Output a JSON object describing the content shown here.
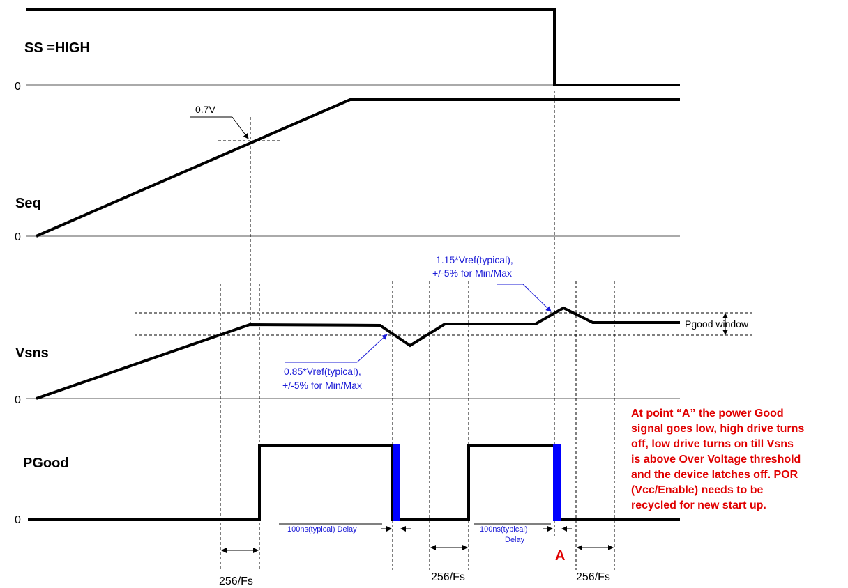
{
  "signals": {
    "ss": "SS =HIGH",
    "seq": "Seq",
    "vsns": "Vsns",
    "pgood": "PGood"
  },
  "zero_label": "0",
  "annotations": {
    "v07": "0.7V",
    "pgood_window": "Pgood window",
    "upper_line1": "1.15*Vref(typical),",
    "upper_line2": "+/-5% for Min/Max",
    "lower_line1": "0.85*Vref(typical),",
    "lower_line2": "+/-5% for Min/Max",
    "delay1": "100ns(typical) Delay",
    "delay2_line1": "100ns(typical)",
    "delay2_line2": "Delay",
    "point_a": "A",
    "fs": "256/Fs"
  },
  "note": [
    "At point “A” the power Good",
    "signal goes low, high drive turns",
    "off, low drive turns on till Vsns",
    "is above Over Voltage threshold",
    "and the device latches off. POR",
    "(Vcc/Enable) needs to be",
    "recycled for new start up."
  ],
  "colors": {
    "signal": "#000000",
    "annotation_blue": "#1a1ad6",
    "pulse_blue": "#0000ff",
    "note_red": "#e00000"
  }
}
